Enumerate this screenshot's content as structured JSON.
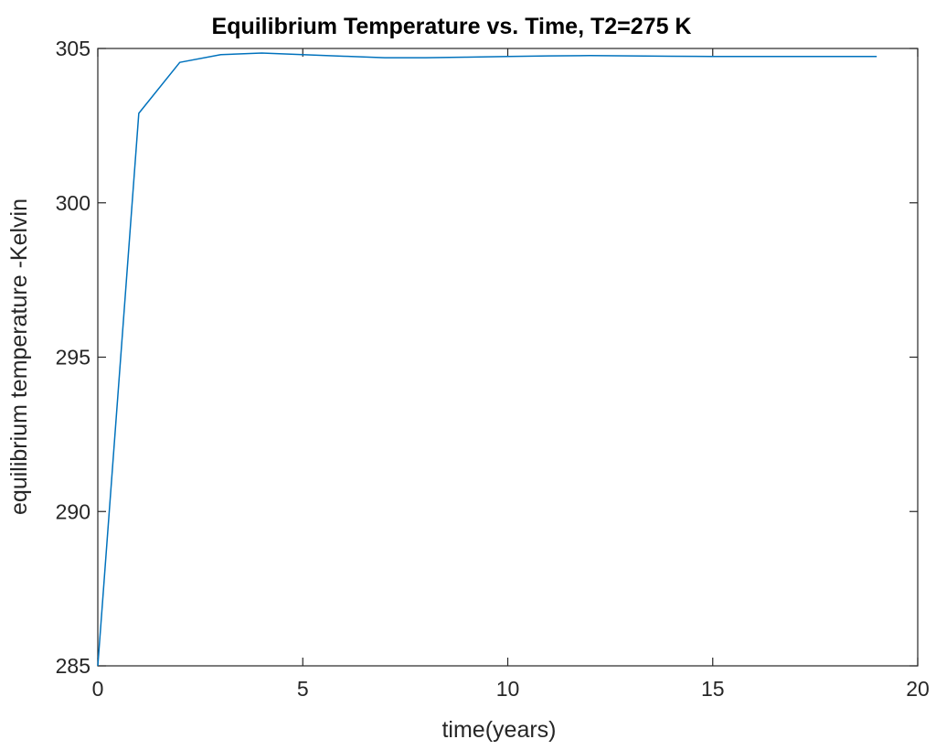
{
  "chart_data": {
    "type": "line",
    "title": "Equilibrium Temperature vs. Time, T2=275 K",
    "xlabel": "time(years)",
    "ylabel": "equilibrium temperature -Kelvin",
    "xlim": [
      0,
      20
    ],
    "ylim": [
      285,
      305
    ],
    "xticks": [
      0,
      5,
      10,
      15,
      20
    ],
    "yticks": [
      285,
      290,
      295,
      300,
      305
    ],
    "grid": false,
    "series": [
      {
        "color": "#0072bd",
        "x": [
          0,
          1,
          2,
          3,
          4,
          5,
          6,
          7,
          8,
          9,
          10,
          11,
          12,
          13,
          14,
          15,
          16,
          17,
          18,
          19
        ],
        "y": [
          285.0,
          302.9,
          304.55,
          304.8,
          304.85,
          304.8,
          304.75,
          304.7,
          304.7,
          304.72,
          304.74,
          304.76,
          304.77,
          304.76,
          304.75,
          304.74,
          304.74,
          304.74,
          304.74,
          304.74
        ]
      }
    ]
  }
}
